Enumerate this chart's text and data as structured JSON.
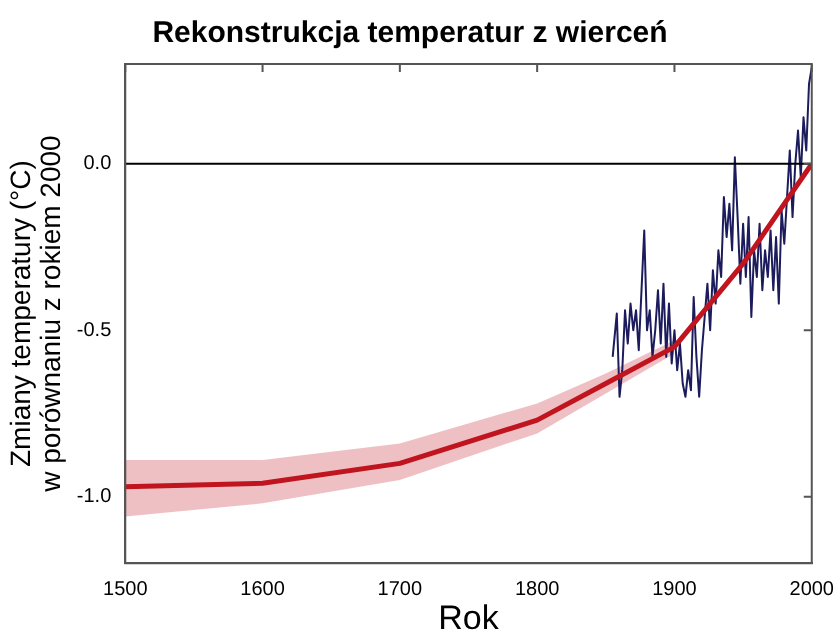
{
  "chart_data": {
    "type": "line",
    "title": "Rekonstrukcja temperatur z wierceń",
    "xlabel": "Rok",
    "ylabel": "Zmiany temperatury (°C)\nw porównaniu z rokiem 2000",
    "xlim": [
      1500,
      2000
    ],
    "xticks": [
      1500,
      1600,
      1700,
      1800,
      1900,
      2000
    ],
    "ylim": [
      -1.2,
      0.3
    ],
    "yticks": [
      {
        "value": -1.0,
        "label": "-1.0"
      },
      {
        "value": -0.5,
        "label": "-0.5"
      },
      {
        "value": 0,
        "label": "0.0"
      }
    ],
    "grid": false,
    "legend": false,
    "marker": "none",
    "line_style": "solid",
    "ref_lines": [
      {
        "axis": "y",
        "value": 0,
        "color": "#000000"
      }
    ],
    "series": [
      {
        "color": "#1c1c5c",
        "x": [
          1855,
          1858,
          1860,
          1862,
          1864,
          1866,
          1868,
          1870,
          1872,
          1874,
          1876,
          1878,
          1880,
          1882,
          1884,
          1886,
          1888,
          1890,
          1892,
          1894,
          1896,
          1898,
          1900,
          1902,
          1904,
          1906,
          1908,
          1910,
          1912,
          1914,
          1916,
          1918,
          1920,
          1922,
          1924,
          1926,
          1928,
          1930,
          1932,
          1934,
          1936,
          1938,
          1940,
          1942,
          1944,
          1946,
          1948,
          1950,
          1952,
          1954,
          1956,
          1958,
          1960,
          1962,
          1964,
          1966,
          1968,
          1970,
          1972,
          1974,
          1976,
          1978,
          1980,
          1982,
          1984,
          1986,
          1988,
          1990,
          1992,
          1994,
          1996,
          1998,
          2000
        ],
        "values": [
          -0.58,
          -0.45,
          -0.7,
          -0.62,
          -0.44,
          -0.54,
          -0.42,
          -0.5,
          -0.44,
          -0.56,
          -0.38,
          -0.2,
          -0.5,
          -0.44,
          -0.58,
          -0.5,
          -0.38,
          -0.54,
          -0.36,
          -0.58,
          -0.42,
          -0.6,
          -0.5,
          -0.62,
          -0.54,
          -0.66,
          -0.7,
          -0.62,
          -0.68,
          -0.4,
          -0.58,
          -0.7,
          -0.56,
          -0.46,
          -0.36,
          -0.5,
          -0.32,
          -0.42,
          -0.26,
          -0.34,
          -0.1,
          -0.22,
          -0.12,
          -0.26,
          0.02,
          -0.16,
          -0.36,
          -0.18,
          -0.34,
          -0.16,
          -0.46,
          -0.26,
          -0.34,
          -0.18,
          -0.38,
          -0.26,
          -0.34,
          -0.2,
          -0.38,
          -0.22,
          -0.42,
          -0.14,
          -0.24,
          -0.1,
          0.04,
          -0.16,
          0.0,
          0.1,
          -0.04,
          0.14,
          0.04,
          0.24,
          0.29
        ]
      },
      {
        "color": "#c0141e",
        "x": [
          1500,
          1600,
          1700,
          1800,
          1850,
          1900,
          1950,
          2000
        ],
        "values": [
          -0.97,
          -0.96,
          -0.9,
          -0.77,
          -0.66,
          -0.55,
          -0.3,
          0.0
        ],
        "lower": [
          -1.06,
          -1.02,
          -0.95,
          -0.81,
          -0.69,
          -0.57,
          null,
          null
        ],
        "upper": [
          -0.89,
          -0.89,
          -0.84,
          -0.72,
          -0.63,
          -0.53,
          null,
          null
        ]
      }
    ]
  }
}
